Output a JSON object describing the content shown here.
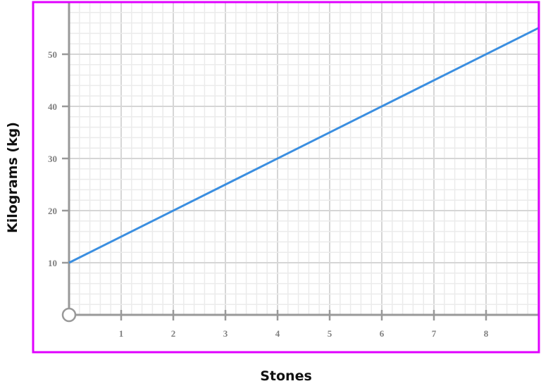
{
  "chart_data": {
    "type": "line",
    "title": "",
    "xlabel": "Stones",
    "ylabel": "Kilograms (kg)",
    "xlim": [
      0,
      9
    ],
    "ylim": [
      0,
      60
    ],
    "x_ticks": [
      "1",
      "2",
      "3",
      "4",
      "5",
      "6",
      "7",
      "8"
    ],
    "y_ticks": [
      "10",
      "20",
      "30",
      "40",
      "50"
    ],
    "grid": true,
    "series": [
      {
        "x": [
          0,
          9
        ],
        "y": [
          10,
          55
        ],
        "color": "#3a8ee0"
      }
    ],
    "colors": {
      "frame": "#e000ff",
      "axis": "#999999",
      "grid_major": "#d6d6d6",
      "grid_minor": "#ebebeb"
    }
  }
}
